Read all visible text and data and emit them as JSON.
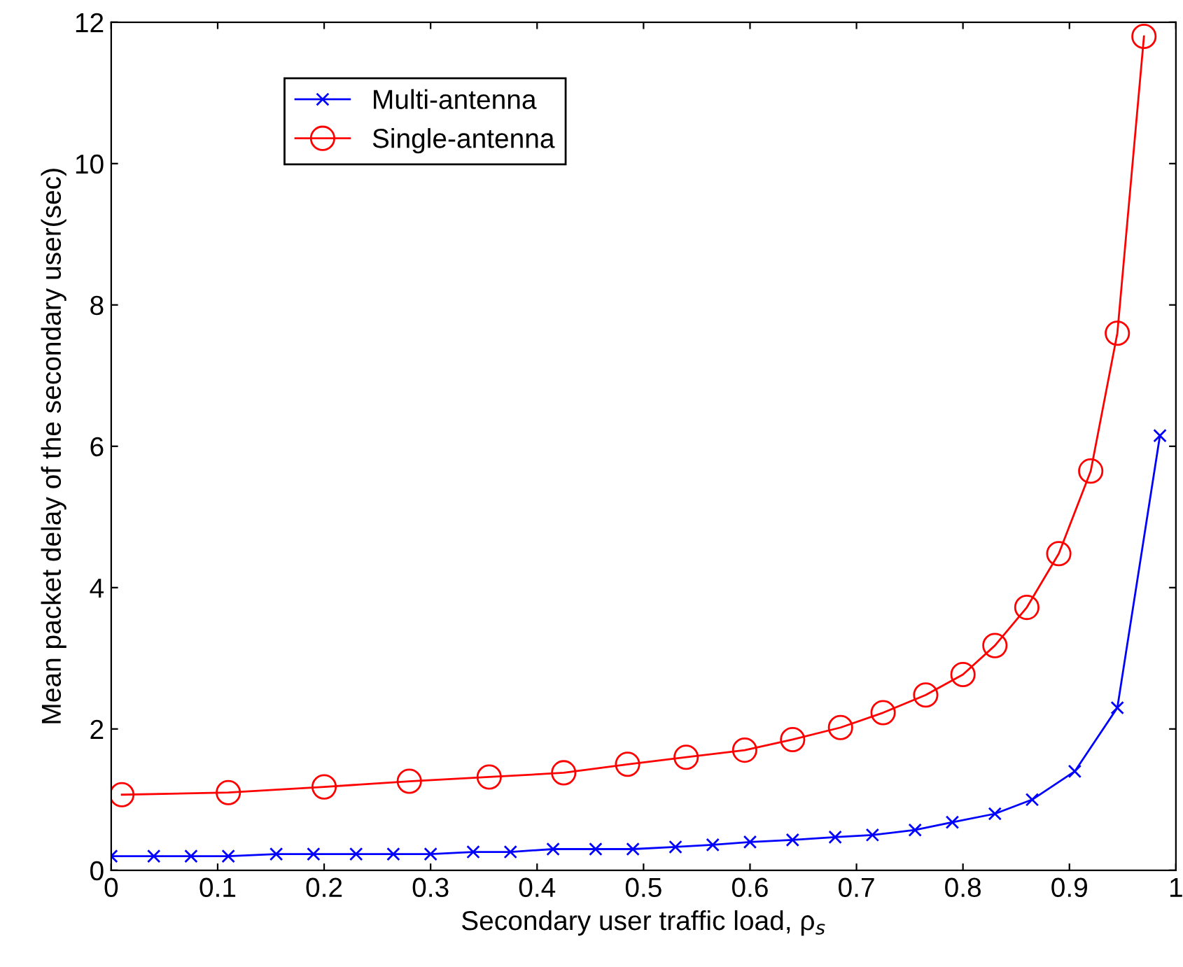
{
  "chart_data": {
    "type": "line",
    "xlabel": "Secondary user traffic load, ρ$_{s}$",
    "ylabel": "Mean packet delay of the secondary user(sec)",
    "xlim": [
      0,
      1
    ],
    "xticks": [
      0,
      0.1,
      0.2,
      0.3,
      0.4,
      0.5,
      0.6,
      0.7,
      0.8,
      0.9,
      1
    ],
    "ylim": [
      0,
      12
    ],
    "yticks": [
      0,
      2,
      4,
      6,
      8,
      10,
      12
    ],
    "grid": false,
    "legend": "top left",
    "series": [
      {
        "name": "Multi-antenna",
        "color": "#0000ff",
        "marker": "cross",
        "x": [
          0,
          0.04,
          0.075,
          0.11,
          0.155,
          0.19,
          0.23,
          0.265,
          0.3,
          0.34,
          0.375,
          0.415,
          0.455,
          0.49,
          0.53,
          0.565,
          0.6,
          0.64,
          0.68,
          0.715,
          0.755,
          0.79,
          0.83,
          0.865,
          0.905,
          0.945,
          0.985
        ],
        "values": [
          0.2,
          0.2,
          0.2,
          0.2,
          0.23,
          0.23,
          0.23,
          0.23,
          0.23,
          0.26,
          0.26,
          0.3,
          0.3,
          0.3,
          0.33,
          0.36,
          0.4,
          0.43,
          0.47,
          0.5,
          0.57,
          0.68,
          0.8,
          1.0,
          1.4,
          2.3,
          6.15
        ]
      },
      {
        "name": "Single-antenna",
        "color": "#ff0000",
        "marker": "circle",
        "x": [
          0.01,
          0.11,
          0.2,
          0.28,
          0.355,
          0.425,
          0.485,
          0.54,
          0.595,
          0.64,
          0.685,
          0.725,
          0.765,
          0.8,
          0.83,
          0.86,
          0.89,
          0.92,
          0.945,
          0.97
        ],
        "values": [
          1.07,
          1.1,
          1.18,
          1.26,
          1.32,
          1.38,
          1.5,
          1.6,
          1.7,
          1.85,
          2.02,
          2.23,
          2.48,
          2.77,
          3.18,
          3.72,
          4.48,
          5.65,
          7.6,
          11.8
        ]
      }
    ]
  }
}
